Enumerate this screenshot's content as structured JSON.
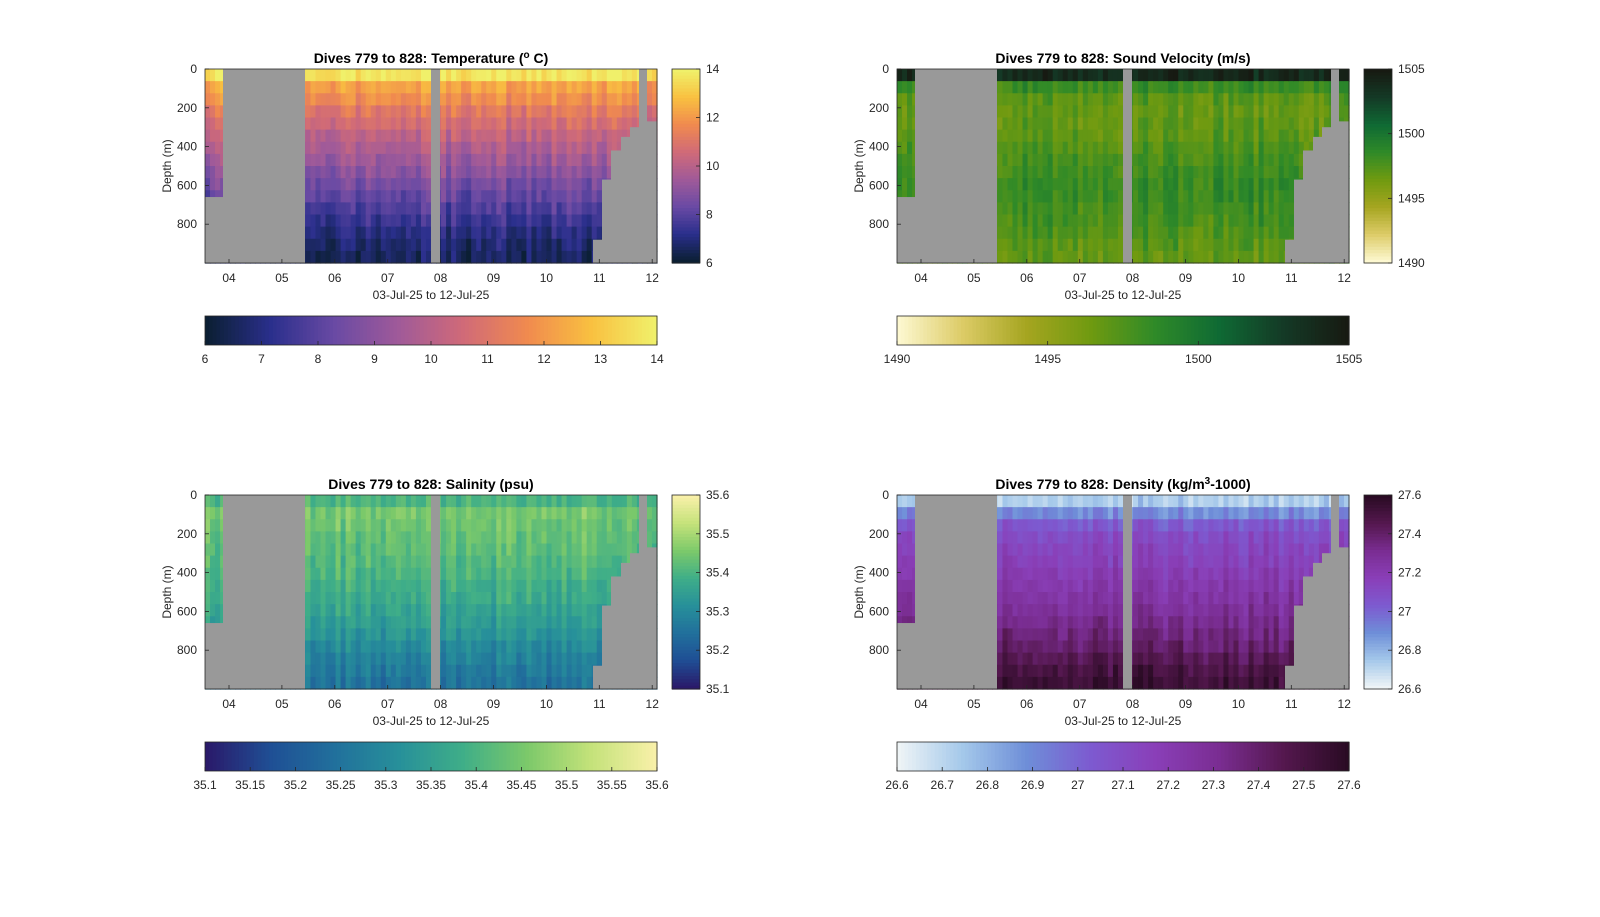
{
  "colors": {
    "background": "#ffffff",
    "no_data": "#999999",
    "axis": "#262626"
  },
  "chart_data": [
    {
      "type": "heatmap",
      "title_parts": [
        "Dives 779 to 828: Temperature (",
        "o",
        " C)"
      ],
      "xlabel": "03-Jul-25 to 12-Jul-25",
      "ylabel": "Depth (m)",
      "x_ticks": [
        "04",
        "05",
        "06",
        "07",
        "08",
        "09",
        "10",
        "11",
        "12"
      ],
      "y_ticks": [
        "0",
        "200",
        "400",
        "600",
        "800"
      ],
      "ylim": [
        0,
        1000
      ],
      "colorbar_ticks": [
        "6",
        "8",
        "10",
        "12",
        "14"
      ],
      "h_colorbar_ticks": [
        "6",
        "7",
        "8",
        "9",
        "10",
        "11",
        "12",
        "13",
        "14"
      ],
      "clim": [
        6,
        14
      ],
      "colormap": [
        "#0b1f33",
        "#2a2f8c",
        "#6a4aa4",
        "#a05a99",
        "#d06a78",
        "#f08a4f",
        "#f9c040",
        "#f0f06a"
      ],
      "depth_profile": [
        0.97,
        0.78,
        0.72,
        0.64,
        0.58,
        0.52,
        0.47,
        0.42,
        0.37,
        0.32,
        0.27,
        0.22,
        0.17,
        0.13,
        0.09,
        0.07
      ]
    },
    {
      "type": "heatmap",
      "title_parts": [
        "Dives 779 to 828: Sound Velocity (m/s)"
      ],
      "xlabel": "03-Jul-25 to 12-Jul-25",
      "ylabel": "Depth (m)",
      "x_ticks": [
        "04",
        "05",
        "06",
        "07",
        "08",
        "09",
        "10",
        "11",
        "12"
      ],
      "y_ticks": [
        "0",
        "200",
        "400",
        "600",
        "800"
      ],
      "ylim": [
        0,
        1000
      ],
      "colorbar_ticks": [
        "1490",
        "1495",
        "1500",
        "1505"
      ],
      "h_colorbar_ticks": [
        "1490",
        "1495",
        "1500",
        "1505"
      ],
      "clim": [
        1490,
        1505
      ],
      "colormap": [
        "#fdf8d0",
        "#dccb66",
        "#a5a520",
        "#6f9a10",
        "#2f8a28",
        "#0f6a34",
        "#143a26",
        "#171a12"
      ],
      "depth_profile": [
        0.93,
        0.55,
        0.47,
        0.45,
        0.46,
        0.47,
        0.5,
        0.52,
        0.54,
        0.56,
        0.55,
        0.53,
        0.52,
        0.5,
        0.48,
        0.46
      ]
    },
    {
      "type": "heatmap",
      "title_parts": [
        "Dives 779 to 828: Salinity (psu)"
      ],
      "xlabel": "03-Jul-25 to 12-Jul-25",
      "ylabel": "Depth (m)",
      "x_ticks": [
        "04",
        "05",
        "06",
        "07",
        "08",
        "09",
        "10",
        "11",
        "12"
      ],
      "y_ticks": [
        "0",
        "200",
        "400",
        "600",
        "800"
      ],
      "ylim": [
        0,
        1000
      ],
      "colorbar_ticks": [
        "35.1",
        "35.2",
        "35.3",
        "35.4",
        "35.5",
        "35.6"
      ],
      "h_colorbar_ticks": [
        "35.1",
        "35.15",
        "35.2",
        "35.25",
        "35.3",
        "35.35",
        "35.4",
        "35.45",
        "35.5",
        "35.55",
        "35.6"
      ],
      "clim": [
        35.1,
        35.6
      ],
      "colormap": [
        "#2a1a6a",
        "#1f4f95",
        "#21709c",
        "#27909a",
        "#3fae88",
        "#7cc96a",
        "#c4e27a",
        "#f8f0a8"
      ],
      "depth_profile": [
        0.6,
        0.7,
        0.68,
        0.66,
        0.64,
        0.62,
        0.6,
        0.57,
        0.55,
        0.52,
        0.49,
        0.45,
        0.4,
        0.36,
        0.33,
        0.3
      ]
    },
    {
      "type": "heatmap",
      "title_parts": [
        "Dives 779 to 828: Density (kg/m",
        "3",
        "-1000)"
      ],
      "xlabel": "03-Jul-25 to 12-Jul-25",
      "ylabel": "Depth (m)",
      "x_ticks": [
        "04",
        "05",
        "06",
        "07",
        "08",
        "09",
        "10",
        "11",
        "12"
      ],
      "y_ticks": [
        "0",
        "200",
        "400",
        "600",
        "800"
      ],
      "ylim": [
        0,
        1000
      ],
      "colorbar_ticks": [
        "26.6",
        "26.8",
        "27",
        "27.2",
        "27.4",
        "27.6"
      ],
      "h_colorbar_ticks": [
        "26.6",
        "26.7",
        "26.8",
        "26.9",
        "27",
        "27.1",
        "27.2",
        "27.3",
        "27.4",
        "27.5",
        "27.6"
      ],
      "clim": [
        26.6,
        27.6
      ],
      "colormap": [
        "#eef4f6",
        "#a4c8ea",
        "#6e8ed8",
        "#7d5ad0",
        "#8a3fb8",
        "#7a2d92",
        "#55184f",
        "#2a0b24"
      ],
      "depth_profile": [
        0.12,
        0.3,
        0.44,
        0.5,
        0.53,
        0.56,
        0.59,
        0.62,
        0.65,
        0.68,
        0.72,
        0.76,
        0.8,
        0.85,
        0.9,
        0.94
      ]
    }
  ]
}
